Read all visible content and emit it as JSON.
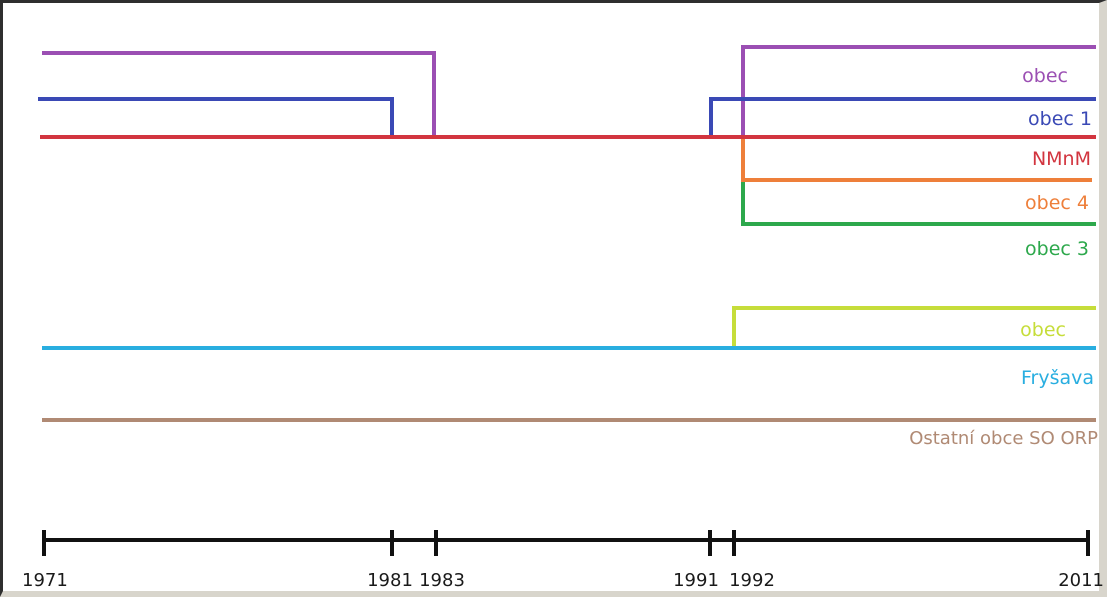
{
  "chart_data": {
    "type": "timeline",
    "x_ticks": [
      1971,
      1981,
      1983,
      1991,
      1992,
      2011
    ],
    "x_tick_labels": [
      "1971",
      "1981",
      "1983",
      "1991",
      "1992",
      "2011"
    ],
    "xlim": [
      1971,
      2011
    ],
    "series": [
      {
        "key": "obec_top",
        "name": "obec",
        "color": "#9b4fb3",
        "segments": [
          {
            "from": 1971,
            "to": 1983,
            "lane": 1
          },
          {
            "from": 1992,
            "to": 2011,
            "lane": 0
          }
        ]
      },
      {
        "key": "obec1",
        "name": "obec 1",
        "color": "#3a49b5",
        "segments": [
          {
            "from": 1971,
            "to": 1981,
            "lane": 2
          },
          {
            "from": 1991,
            "to": 2011,
            "lane": 2
          }
        ]
      },
      {
        "key": "nmnm",
        "name": "NMnM",
        "color": "#d2353f",
        "segments": [
          {
            "from": 1971,
            "to": 2011,
            "lane": 3
          }
        ]
      },
      {
        "key": "obec4",
        "name": "obec 4",
        "color": "#ee7f3a",
        "segments": [
          {
            "from": 1992,
            "to": 2011,
            "lane": 4
          }
        ]
      },
      {
        "key": "obec3",
        "name": "obec 3",
        "color": "#2da84c",
        "segments": [
          {
            "from": 1992,
            "to": 2011,
            "lane": 5
          }
        ]
      },
      {
        "key": "obec_low",
        "name": "obec",
        "color": "#c6dd3a",
        "segments": [
          {
            "from": 1992,
            "to": 2011,
            "lane": 6
          }
        ]
      },
      {
        "key": "frysava",
        "name": "Fryšava",
        "color": "#29aee0",
        "segments": [
          {
            "from": 1971,
            "to": 2011,
            "lane": 7
          }
        ]
      },
      {
        "key": "ostatni",
        "name": "Ostatní obce SO ORP",
        "color": "#b08a74",
        "segments": [
          {
            "from": 1971,
            "to": 2011,
            "lane": 8
          }
        ]
      }
    ]
  }
}
